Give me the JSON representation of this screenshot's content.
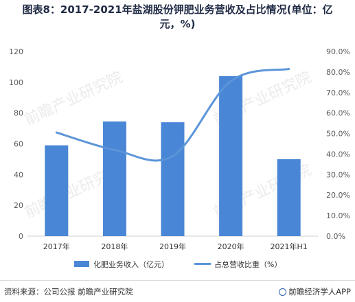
{
  "title_lines": [
    "图表8：2017-2021年盐湖股份钾肥业务营收及占比情况(单位：亿",
    "元，%)"
  ],
  "source": "资料来源：公司公报 前瞻产业研究院",
  "brand": "前瞻经济学人APP",
  "watermark": "前瞻产业研究院",
  "colors": {
    "bar": "#4a86d6",
    "line": "#5b95d8",
    "axis_text": "#595959",
    "grid": "#e3e3e3"
  },
  "chart_data": {
    "type": "bar",
    "categories": [
      "2017年",
      "2018年",
      "2019年",
      "2020年",
      "2021年H1"
    ],
    "series": [
      {
        "name": "化肥业务收入（亿元）",
        "type": "bar",
        "axis": "left",
        "values": [
          59,
          74.5,
          74,
          104,
          50
        ]
      },
      {
        "name": "占总营收比重（%）",
        "type": "line",
        "axis": "right",
        "values": [
          50.5,
          42,
          39,
          75.5,
          81.5
        ]
      }
    ],
    "y_left": {
      "min": 0,
      "max": 120,
      "ticks": [
        "0",
        "20",
        "40",
        "60",
        "80",
        "100",
        "120"
      ]
    },
    "y_right": {
      "min": 0,
      "max": 90,
      "ticks": [
        "0.0%",
        "10.0%",
        "20.0%",
        "30.0%",
        "40.0%",
        "50.0%",
        "60.0%",
        "70.0%",
        "80.0%",
        "90.0%"
      ]
    },
    "grid": false,
    "legend_position": "bottom"
  }
}
